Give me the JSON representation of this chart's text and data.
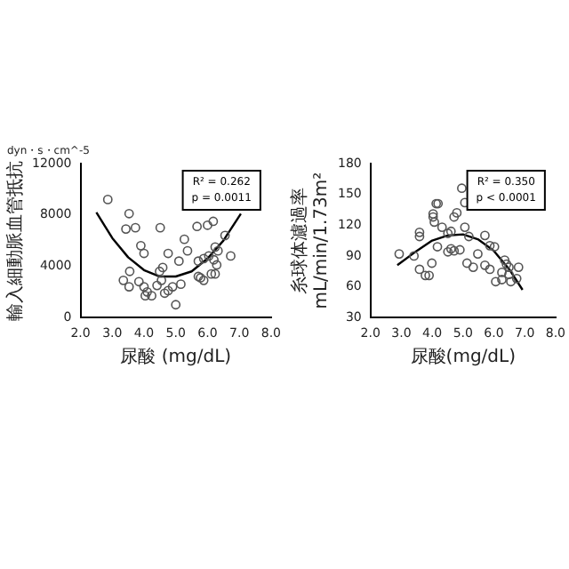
{
  "chart_data": [
    {
      "type": "scatter",
      "subtitle": "dyn・s・cm^-5",
      "xlabel": "尿酸 (mg/dL)",
      "ylabel": "輸入細動脈血管抵抗",
      "legend": false,
      "grid": false,
      "xlim": [
        2,
        8
      ],
      "xticks": [
        {
          "value": 2,
          "label": "2.0"
        },
        {
          "value": 3,
          "label": "3.0"
        },
        {
          "value": 4,
          "label": "4.0"
        },
        {
          "value": 5,
          "label": "5.0"
        },
        {
          "value": 6,
          "label": "6.0"
        },
        {
          "value": 7,
          "label": "7.0"
        },
        {
          "value": 8,
          "label": "8.0"
        }
      ],
      "ylim": [
        0,
        12000
      ],
      "yticks": [
        0,
        4000,
        8000,
        12000
      ],
      "annotations": [
        "R² = 0.262",
        "p = 0.0011"
      ],
      "series": [
        {
          "marker": "circle",
          "color": "#555555",
          "x": [
            2.86,
            3.53,
            3.43,
            3.73,
            3.9,
            4.0,
            4.51,
            4.76,
            5.27,
            5.37,
            5.1,
            4.59,
            4.49,
            3.55,
            3.35,
            3.53,
            3.84,
            4.0,
            4.1,
            4.04,
            4.24,
            4.41,
            4.55,
            4.65,
            4.76,
            4.9,
            5.16,
            5.0,
            5.67,
            6.0,
            6.18,
            6.55,
            5.71,
            5.88,
            6.04,
            6.24,
            6.33,
            6.2,
            6.29,
            6.12,
            5.78,
            5.88,
            5.71,
            6.73,
            6.24
          ],
          "values": [
            9200,
            8100,
            6900,
            7000,
            5600,
            5000,
            7000,
            5000,
            6100,
            5200,
            4400,
            3900,
            3600,
            3600,
            2900,
            2400,
            2800,
            2400,
            2000,
            1700,
            1700,
            2500,
            2900,
            1900,
            2100,
            2400,
            2600,
            1000,
            7100,
            7200,
            7500,
            6400,
            4400,
            4600,
            4800,
            5500,
            5200,
            4500,
            4100,
            3400,
            3100,
            2900,
            3200,
            4800,
            3400
          ]
        },
        {
          "type": "line",
          "marker": "none",
          "color": "#000000",
          "x": [
            2.5,
            3.0,
            3.5,
            4.0,
            4.5,
            5.0,
            5.5,
            6.0,
            6.5,
            7.05
          ],
          "values": [
            8200,
            6200,
            4700,
            3700,
            3200,
            3200,
            3600,
            4600,
            6000,
            8100
          ]
        }
      ]
    },
    {
      "type": "scatter",
      "xlabel": "尿酸(mg/dL)",
      "ylabel": "糸球体濾過率\nmL/min/1.73m²",
      "legend": false,
      "grid": false,
      "xlim": [
        2,
        8
      ],
      "xticks": [
        {
          "value": 2,
          "label": "2.0"
        },
        {
          "value": 3,
          "label": "3.0"
        },
        {
          "value": 4,
          "label": "4.0"
        },
        {
          "value": 5,
          "label": "5.0"
        },
        {
          "value": 6,
          "label": "6.0"
        },
        {
          "value": 7,
          "label": "7.0"
        },
        {
          "value": 8,
          "label": "8.0"
        }
      ],
      "ylim": [
        30,
        180
      ],
      "yticks": [
        30,
        60,
        90,
        120,
        150,
        180
      ],
      "annotations": [
        "R² = 0.350",
        "p < 0.0001"
      ],
      "series": [
        {
          "marker": "circle",
          "color": "#555555",
          "x": [
            2.93,
            3.41,
            3.59,
            3.59,
            3.59,
            3.78,
            3.9,
            3.99,
            4.03,
            4.13,
            4.19,
            4.03,
            4.07,
            4.17,
            4.32,
            4.51,
            4.61,
            4.71,
            4.8,
            4.61,
            4.51,
            4.71,
            4.9,
            4.96,
            5.06,
            5.06,
            5.19,
            5.13,
            5.33,
            5.48,
            5.71,
            5.87,
            6.02,
            5.71,
            5.87,
            6.06,
            6.26,
            6.35,
            6.41,
            6.49,
            6.49,
            6.55,
            6.8,
            6.74,
            6.26
          ],
          "values": [
            92,
            90,
            113,
            109,
            77,
            71,
            71,
            83,
            128,
            141,
            141,
            131,
            123,
            99,
            118,
            112,
            114,
            128,
            132,
            97,
            94,
            95,
            96,
            156,
            142,
            118,
            109,
            83,
            79,
            92,
            110,
            100,
            99,
            81,
            77,
            65,
            67,
            86,
            82,
            79,
            72,
            65,
            79,
            68,
            74
          ]
        },
        {
          "type": "line",
          "marker": "none",
          "color": "#000000",
          "x": [
            2.87,
            3.5,
            4.0,
            4.5,
            5.0,
            5.5,
            6.0,
            6.5,
            6.93
          ],
          "values": [
            81,
            95,
            105,
            110,
            111,
            106,
            95,
            77,
            57
          ]
        }
      ]
    }
  ]
}
